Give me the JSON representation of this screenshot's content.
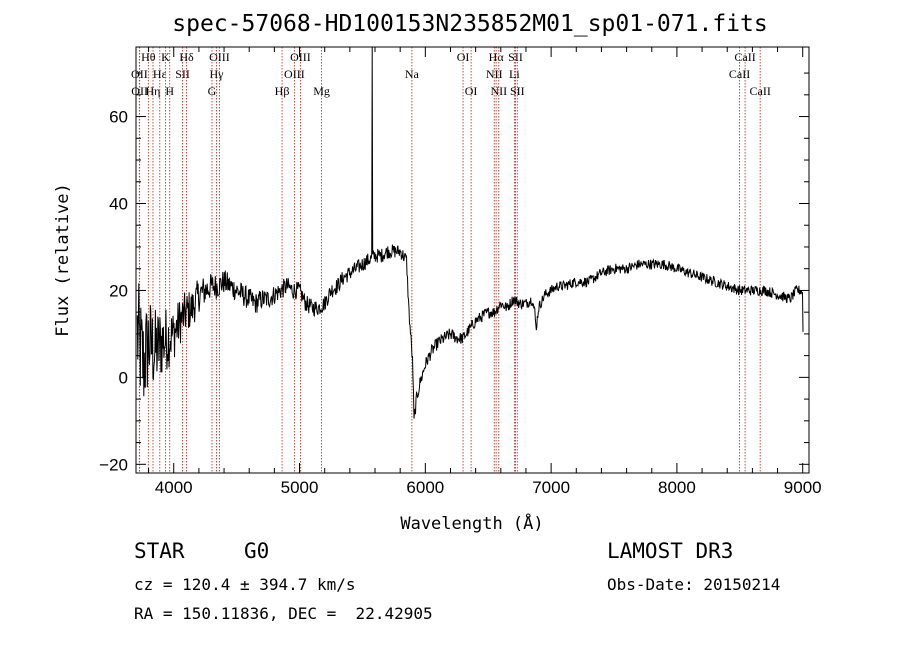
{
  "chart_data": {
    "type": "line",
    "title": "spec-57068-HD100153N235852M01_sp01-071.fits",
    "xlabel": "Wavelength (Å)",
    "ylabel": "Flux (relative)",
    "xlim": [
      3700,
      9050
    ],
    "ylim": [
      -22,
      76
    ],
    "xticks": [
      4000,
      5000,
      6000,
      7000,
      8000,
      9000
    ],
    "yticks": [
      -20,
      0,
      20,
      40,
      60
    ],
    "xtick_labels": [
      "4000",
      "5000",
      "6000",
      "7000",
      "8000",
      "9000"
    ],
    "ytick_labels": [
      "−20",
      "0",
      "20",
      "40",
      "60"
    ],
    "spectral_lines": [
      {
        "label": "Hθ",
        "wavelength": 3798,
        "row": 1
      },
      {
        "label": "Hη",
        "wavelength": 3835,
        "row": 3
      },
      {
        "label": "OII",
        "wavelength": 3727,
        "row": 2
      },
      {
        "label": "OII",
        "wavelength": 3729,
        "row": 3
      },
      {
        "label": "Hε",
        "wavelength": 3889,
        "row": 2
      },
      {
        "label": "K",
        "wavelength": 3934,
        "row": 1
      },
      {
        "label": "H",
        "wavelength": 3968,
        "row": 3
      },
      {
        "label": "SII",
        "wavelength": 4070,
        "row": 2
      },
      {
        "label": "Hδ",
        "wavelength": 4102,
        "row": 1
      },
      {
        "label": "OIII",
        "wavelength": 4363,
        "row": 1
      },
      {
        "label": "Hγ",
        "wavelength": 4340,
        "row": 2
      },
      {
        "label": "G",
        "wavelength": 4304,
        "row": 3
      },
      {
        "label": "Hβ",
        "wavelength": 4861,
        "row": 3
      },
      {
        "label": "OIII",
        "wavelength": 5007,
        "row": 1
      },
      {
        "label": "OIII",
        "wavelength": 4959,
        "row": 2
      },
      {
        "label": "Mg",
        "wavelength": 5175,
        "row": 3
      },
      {
        "label": "Na",
        "wavelength": 5893,
        "row": 2
      },
      {
        "label": "OI",
        "wavelength": 6300,
        "row": 1
      },
      {
        "label": "OI",
        "wavelength": 6364,
        "row": 3
      },
      {
        "label": "Hα",
        "wavelength": 6563,
        "row": 1
      },
      {
        "label": "NII",
        "wavelength": 6548,
        "row": 2
      },
      {
        "label": "NII",
        "wavelength": 6584,
        "row": 3
      },
      {
        "label": "SII",
        "wavelength": 6717,
        "row": 1
      },
      {
        "label": "Li",
        "wavelength": 6708,
        "row": 2
      },
      {
        "label": "SII",
        "wavelength": 6731,
        "row": 3
      },
      {
        "label": "CaII",
        "wavelength": 8542,
        "row": 1
      },
      {
        "label": "CaII",
        "wavelength": 8498,
        "row": 2
      },
      {
        "label": "CaII",
        "wavelength": 8662,
        "row": 3
      }
    ],
    "spectrum_anchors": [
      [
        3710,
        10
      ],
      [
        3760,
        3
      ],
      [
        3800,
        8
      ],
      [
        3850,
        6
      ],
      [
        3900,
        8
      ],
      [
        3950,
        9
      ],
      [
        4000,
        10
      ],
      [
        4050,
        13
      ],
      [
        4100,
        15
      ],
      [
        4150,
        16
      ],
      [
        4200,
        19
      ],
      [
        4250,
        20
      ],
      [
        4300,
        21
      ],
      [
        4350,
        21
      ],
      [
        4400,
        22
      ],
      [
        4450,
        21
      ],
      [
        4500,
        20
      ],
      [
        4550,
        19
      ],
      [
        4600,
        18
      ],
      [
        4650,
        17
      ],
      [
        4700,
        18
      ],
      [
        4750,
        18
      ],
      [
        4800,
        19
      ],
      [
        4850,
        20
      ],
      [
        4900,
        21
      ],
      [
        4950,
        20
      ],
      [
        5000,
        20
      ],
      [
        5050,
        17
      ],
      [
        5100,
        16
      ],
      [
        5150,
        16
      ],
      [
        5200,
        17
      ],
      [
        5250,
        20
      ],
      [
        5300,
        21
      ],
      [
        5350,
        23
      ],
      [
        5400,
        24
      ],
      [
        5450,
        25
      ],
      [
        5500,
        26
      ],
      [
        5550,
        27
      ],
      [
        5600,
        28
      ],
      [
        5650,
        28
      ],
      [
        5700,
        29
      ],
      [
        5750,
        29
      ],
      [
        5800,
        29
      ],
      [
        5850,
        27
      ],
      [
        5870,
        15
      ],
      [
        5900,
        3
      ],
      [
        5910,
        -10
      ],
      [
        5930,
        -5
      ],
      [
        5960,
        -1
      ],
      [
        6000,
        3
      ],
      [
        6050,
        6
      ],
      [
        6100,
        8
      ],
      [
        6150,
        9
      ],
      [
        6200,
        10
      ],
      [
        6250,
        9
      ],
      [
        6300,
        9
      ],
      [
        6350,
        11
      ],
      [
        6400,
        13
      ],
      [
        6450,
        14
      ],
      [
        6500,
        15
      ],
      [
        6550,
        15
      ],
      [
        6600,
        17
      ],
      [
        6650,
        16
      ],
      [
        6700,
        18
      ],
      [
        6750,
        17
      ],
      [
        6800,
        17
      ],
      [
        6850,
        18
      ],
      [
        6870,
        15
      ],
      [
        6880,
        11
      ],
      [
        6900,
        16
      ],
      [
        6950,
        19
      ],
      [
        7000,
        20
      ],
      [
        7050,
        21
      ],
      [
        7100,
        21
      ],
      [
        7200,
        22
      ],
      [
        7300,
        22
      ],
      [
        7400,
        24
      ],
      [
        7500,
        25
      ],
      [
        7600,
        25
      ],
      [
        7700,
        26
      ],
      [
        7800,
        26
      ],
      [
        7900,
        26
      ],
      [
        8000,
        25
      ],
      [
        8100,
        24
      ],
      [
        8200,
        23
      ],
      [
        8300,
        22
      ],
      [
        8400,
        21
      ],
      [
        8500,
        20
      ],
      [
        8600,
        20
      ],
      [
        8700,
        20
      ],
      [
        8800,
        19
      ],
      [
        8900,
        18
      ],
      [
        8950,
        20
      ],
      [
        8990,
        20
      ],
      [
        9000,
        19
      ],
      [
        9005,
        0
      ]
    ],
    "emission_spike": {
      "wavelength": 5577,
      "flux": 76
    },
    "noise_profile": [
      {
        "wavelength": 3700,
        "amplitude": 14
      },
      {
        "wavelength": 3850,
        "amplitude": 10
      },
      {
        "wavelength": 4000,
        "amplitude": 6
      },
      {
        "wavelength": 4300,
        "amplitude": 3
      },
      {
        "wavelength": 5000,
        "amplitude": 2
      },
      {
        "wavelength": 6000,
        "amplitude": 1.5
      },
      {
        "wavelength": 7000,
        "amplitude": 1.2
      },
      {
        "wavelength": 9000,
        "amplitude": 1.2
      }
    ]
  },
  "info": {
    "object_class": "STAR",
    "subclass": "G0",
    "survey": "LAMOST DR3",
    "velocity": "cz = 120.4 ± 394.7 km/s",
    "obs_date": "Obs-Date: 20150214",
    "coords": "RA = 150.11836, DEC =  22.42905"
  }
}
